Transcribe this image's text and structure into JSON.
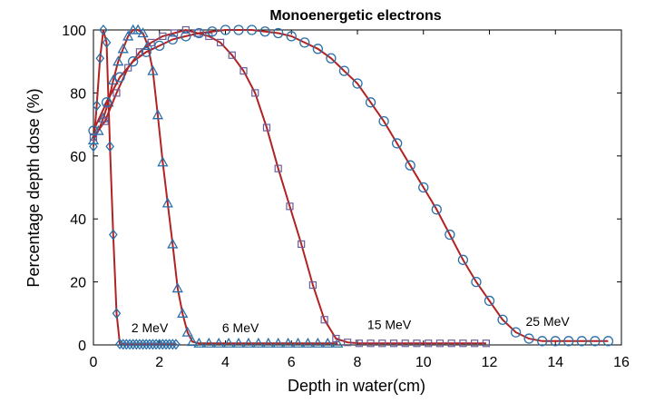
{
  "chart_data": {
    "type": "line",
    "title": "Monoenergetic electrons",
    "xlabel": "Depth in water(cm)",
    "ylabel": "Percentage depth dose (%)",
    "xlim": [
      0,
      16
    ],
    "ylim": [
      0,
      100
    ],
    "xticks": [
      "0",
      "2",
      "4",
      "6",
      "8",
      "10",
      "12",
      "14",
      "16"
    ],
    "yticks": [
      "0",
      "20",
      "40",
      "60",
      "80",
      "100"
    ],
    "grid": false,
    "line_color": "#b22222",
    "marker_color": "#2a6fa8",
    "series": [
      {
        "marker": "diamond",
        "x": [
          0.0,
          0.1,
          0.2,
          0.3,
          0.4,
          0.5,
          0.6,
          0.7,
          0.8,
          0.9,
          1.0,
          1.1,
          1.2,
          1.3,
          1.4,
          1.5,
          1.6,
          1.7,
          1.8,
          1.9,
          2.0,
          2.1,
          2.2,
          2.3,
          2.4,
          2.5
        ],
        "y": [
          63,
          76,
          91,
          100,
          96,
          63,
          35,
          10,
          0.3,
          0.2,
          0.2,
          0.2,
          0.2,
          0.2,
          0.2,
          0.2,
          0.2,
          0.2,
          0.2,
          0.2,
          0.2,
          0.2,
          0.2,
          0.2,
          0.2,
          0.2
        ]
      },
      {
        "marker": "triangle",
        "x": [
          0.0,
          0.15,
          0.3,
          0.45,
          0.6,
          0.75,
          0.9,
          1.05,
          1.2,
          1.35,
          1.5,
          1.65,
          1.8,
          1.95,
          2.1,
          2.25,
          2.4,
          2.55,
          2.7,
          2.85,
          3.0,
          3.2,
          3.5,
          3.8,
          4.1,
          4.4,
          4.7,
          5.0,
          5.3,
          5.6,
          5.9,
          6.2,
          6.5,
          6.8,
          7.1,
          7.4
        ],
        "y": [
          65,
          68,
          72,
          77,
          84,
          90,
          94,
          98,
          100,
          100,
          99,
          95,
          87,
          73,
          58,
          45,
          32,
          18,
          10,
          4,
          1,
          0.5,
          0.5,
          0.5,
          0.5,
          0.5,
          0.5,
          0.5,
          0.5,
          0.5,
          0.5,
          0.5,
          0.5,
          0.5,
          0.5,
          0.5
        ]
      },
      {
        "marker": "square",
        "x": [
          0.0,
          0.35,
          0.7,
          1.05,
          1.4,
          1.75,
          2.1,
          2.45,
          2.8,
          3.15,
          3.5,
          3.85,
          4.2,
          4.55,
          4.9,
          5.25,
          5.6,
          5.95,
          6.3,
          6.65,
          7.0,
          7.35,
          7.7,
          8.05,
          8.4,
          8.75,
          9.1,
          9.45,
          9.8,
          10.15,
          10.5,
          10.85,
          11.2,
          11.55,
          11.9
        ],
        "y": [
          66,
          71,
          80,
          88,
          93,
          96,
          98,
          99,
          100,
          99,
          98,
          96,
          92,
          87,
          80,
          69,
          56,
          44,
          32,
          19,
          8,
          2,
          0.8,
          0.5,
          0.5,
          0.5,
          0.5,
          0.5,
          0.5,
          0.5,
          0.5,
          0.5,
          0.5,
          0.5,
          0.5
        ]
      },
      {
        "marker": "circle",
        "x": [
          0.0,
          0.4,
          0.8,
          1.2,
          1.6,
          2.0,
          2.4,
          2.8,
          3.2,
          3.6,
          4.0,
          4.4,
          4.8,
          5.2,
          5.6,
          6.0,
          6.4,
          6.8,
          7.2,
          7.6,
          8.0,
          8.4,
          8.8,
          9.2,
          9.6,
          10.0,
          10.4,
          10.8,
          11.2,
          11.6,
          12.0,
          12.4,
          12.8,
          13.2,
          13.6,
          14.0,
          14.4,
          14.8,
          15.2,
          15.6
        ],
        "y": [
          68,
          77,
          85,
          90,
          93,
          95,
          97,
          98,
          99,
          99.5,
          100,
          100,
          100,
          99.5,
          99,
          98,
          96,
          94,
          91,
          87,
          83,
          77,
          71,
          64,
          57,
          50,
          43,
          35,
          27,
          20,
          14,
          8,
          4,
          2,
          1.2,
          1.2,
          1.2,
          1.2,
          1.2,
          1.2
        ]
      }
    ],
    "annotations": [
      {
        "text": "2 MeV",
        "x": 1.15,
        "y": 4
      },
      {
        "text": "6 MeV",
        "x": 3.9,
        "y": 4
      },
      {
        "text": "15 MeV",
        "x": 8.3,
        "y": 5
      },
      {
        "text": "25 MeV",
        "x": 13.1,
        "y": 6
      }
    ]
  }
}
